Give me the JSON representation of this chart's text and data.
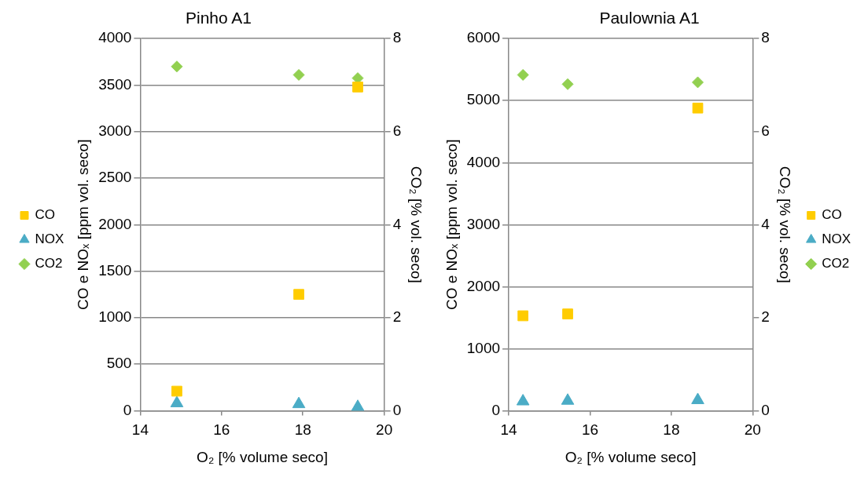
{
  "chart_data": [
    {
      "type": "scatter",
      "title": "Pinho A1",
      "xlabel": "O₂ [% volume seco]",
      "ylabel": "CO e NOₓ [ppm vol. seco]",
      "y2label": "CO₂ [% vol. seco]",
      "xlim": [
        14,
        20
      ],
      "xticks": [
        14,
        16,
        18,
        20
      ],
      "ylim": [
        0,
        4000
      ],
      "yticks": [
        0,
        500,
        1000,
        1500,
        2000,
        2500,
        3000,
        3500,
        4000
      ],
      "y2lim": [
        0,
        8
      ],
      "y2ticks": [
        0,
        2,
        4,
        6,
        8
      ],
      "grid": "y",
      "legend": "left",
      "series": [
        {
          "name": "CO",
          "color": "#ffcc00",
          "marker": "square",
          "x": [
            14.9,
            17.9,
            19.35
          ],
          "values": [
            210,
            1250,
            3480
          ]
        },
        {
          "name": "NOX",
          "color": "#4bacc6",
          "marker": "triangle",
          "x": [
            14.9,
            17.9,
            19.35
          ],
          "values": [
            80,
            70,
            40
          ]
        },
        {
          "name": "CO2",
          "color": "#92d050",
          "marker": "diamond",
          "axis": "y2",
          "x": [
            14.9,
            17.9,
            19.35
          ],
          "values": [
            7.4,
            7.22,
            7.15
          ]
        }
      ]
    },
    {
      "type": "scatter",
      "title": "Paulownia A1",
      "xlabel": "O₂ [% volume seco]",
      "ylabel": "CO e NOₓ [ppm vol. seco]",
      "y2label": "CO₂ [% vol. seco]",
      "xlim": [
        14,
        20
      ],
      "xticks": [
        14,
        16,
        18,
        20
      ],
      "ylim": [
        0,
        6000
      ],
      "yticks": [
        0,
        1000,
        2000,
        3000,
        4000,
        5000,
        6000
      ],
      "y2lim": [
        0,
        8
      ],
      "y2ticks": [
        0,
        2,
        4,
        6,
        8
      ],
      "grid": "y",
      "legend": "right",
      "series": [
        {
          "name": "CO",
          "color": "#ffcc00",
          "marker": "square",
          "x": [
            14.35,
            15.45,
            18.65
          ],
          "values": [
            1530,
            1560,
            4880
          ]
        },
        {
          "name": "NOX",
          "color": "#4bacc6",
          "marker": "triangle",
          "x": [
            14.35,
            15.45,
            18.65
          ],
          "values": [
            150,
            160,
            170
          ]
        },
        {
          "name": "CO2",
          "color": "#92d050",
          "marker": "diamond",
          "axis": "y2",
          "x": [
            14.35,
            15.45,
            18.65
          ],
          "values": [
            7.22,
            7.02,
            7.06
          ]
        }
      ]
    }
  ]
}
